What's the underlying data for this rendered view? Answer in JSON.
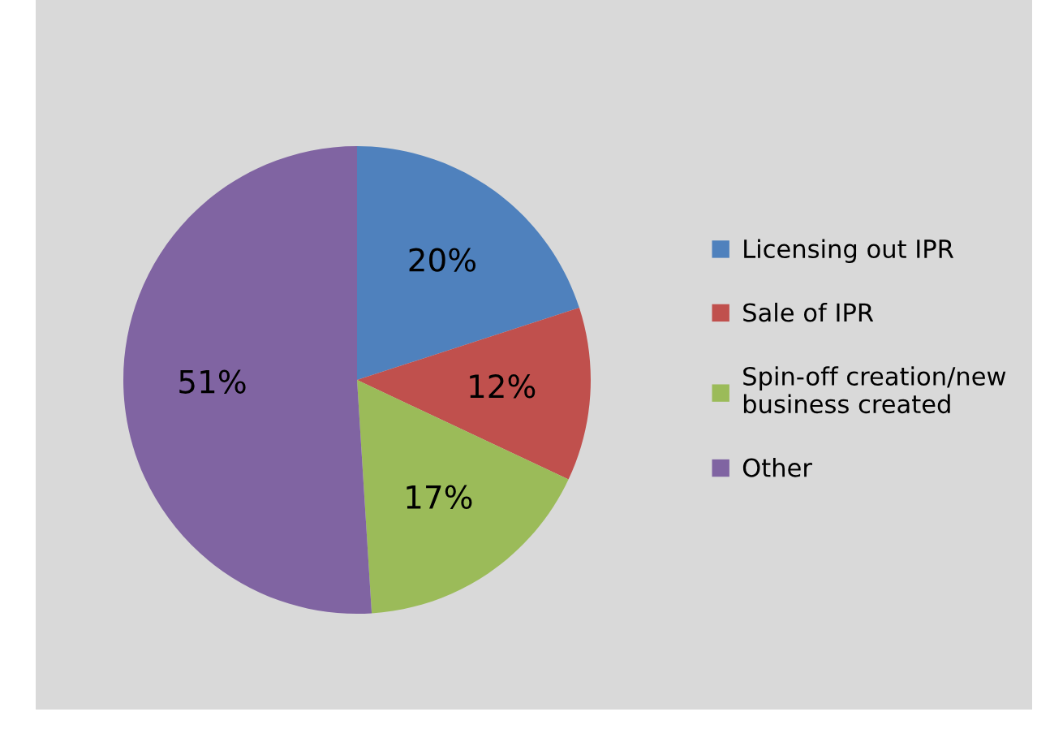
{
  "chart_data": {
    "type": "pie",
    "categories": [
      "Licensing out IPR",
      "Sale of IPR",
      "Spin-off creation/new\nbusiness created",
      "Other"
    ],
    "values": [
      20,
      12,
      17,
      51
    ],
    "value_labels": [
      "20%",
      "12%",
      "17%",
      "51%"
    ],
    "colors": [
      "#4f81bd",
      "#c0504d",
      "#9bbb59",
      "#8064a2"
    ],
    "legend": "right"
  }
}
